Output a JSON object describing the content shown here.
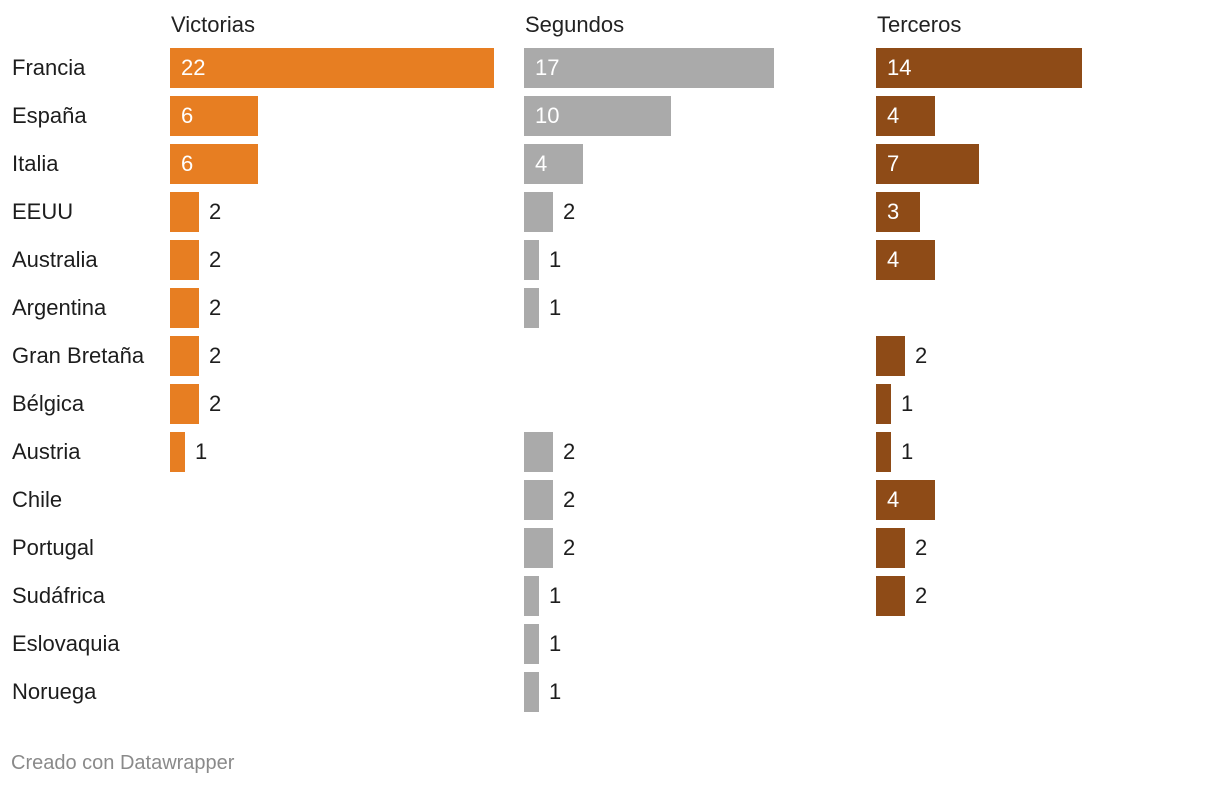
{
  "chart_data": {
    "type": "bar",
    "orientation": "horizontal",
    "categories": [
      "Francia",
      "España",
      "Italia",
      "EEUU",
      "Australia",
      "Argentina",
      "Gran Bretaña",
      "Bélgica",
      "Austria",
      "Chile",
      "Portugal",
      "Sudáfrica",
      "Eslovaquia",
      "Noruega"
    ],
    "series": [
      {
        "name": "Victorias",
        "color": "#e77e22",
        "values": [
          22,
          6,
          6,
          2,
          2,
          2,
          2,
          2,
          1,
          null,
          null,
          null,
          null,
          null
        ]
      },
      {
        "name": "Segundos",
        "color": "#aaaaaa",
        "values": [
          17,
          10,
          4,
          2,
          1,
          1,
          null,
          null,
          2,
          2,
          2,
          1,
          1,
          1
        ]
      },
      {
        "name": "Terceros",
        "color": "#8e4b17",
        "values": [
          14,
          4,
          7,
          3,
          4,
          null,
          2,
          1,
          1,
          4,
          2,
          2,
          null,
          null
        ]
      }
    ],
    "xlim": [
      0,
      22
    ],
    "grid": false,
    "legend": "none",
    "title": "",
    "xlabel": "",
    "ylabel": ""
  },
  "footer": {
    "credit": "Creado con Datawrapper"
  }
}
